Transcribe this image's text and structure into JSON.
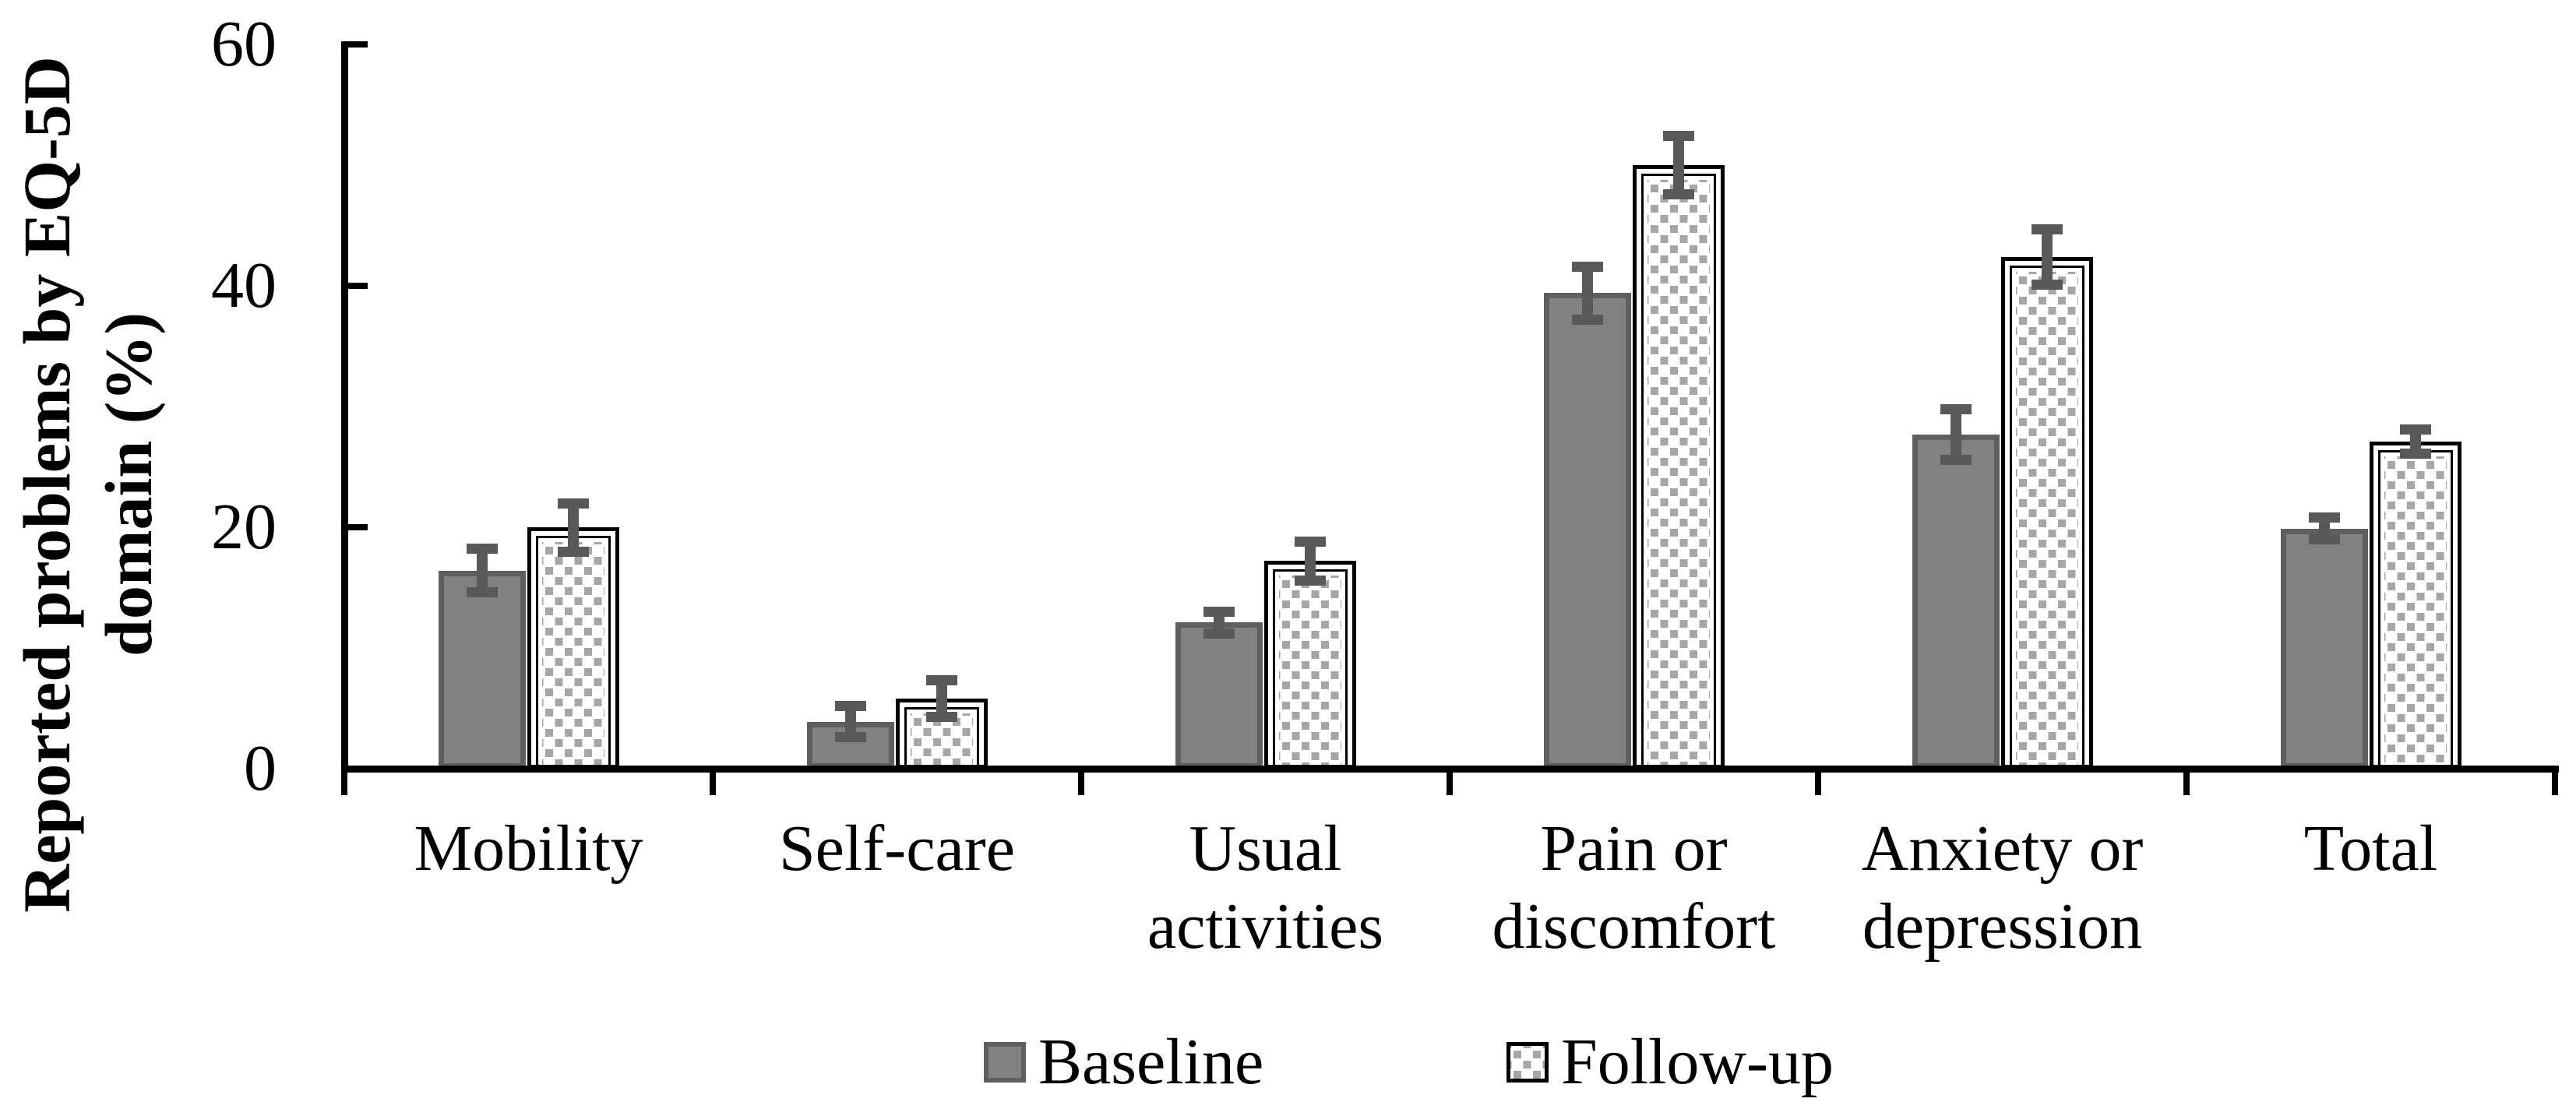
{
  "chart_data": {
    "type": "bar",
    "title": "",
    "xlabel": "",
    "ylabel": "Reported problems by EQ-5D domain (%)",
    "ylabel_lines": [
      "Reported problems by EQ-5D",
      "domain (%)"
    ],
    "categories": [
      "Mobility",
      "Self-care",
      "Usual activities",
      "Pain or discomfort",
      "Anxiety or depression",
      "Total"
    ],
    "x_tick_labels": [
      "Mobility",
      "Self-care",
      "Usual\nactivities",
      "Pain or\ndiscomfort",
      "Anxiety or\ndepression",
      "Total"
    ],
    "series": [
      {
        "name": "Baseline",
        "values": [
          16.4,
          3.9,
          12.1,
          39.4,
          27.7,
          19.9
        ],
        "errors": [
          1.8,
          1.3,
          0.9,
          2.2,
          2.1,
          0.9
        ],
        "fill_color": "#818181",
        "border_color": "#5f5f5f",
        "pattern": "solid"
      },
      {
        "name": "Follow-up",
        "values": [
          20.0,
          5.8,
          17.2,
          50.0,
          42.4,
          27.1
        ],
        "errors": [
          2.0,
          1.5,
          1.6,
          2.4,
          2.3,
          1.0
        ],
        "fill_color": "#ffffff",
        "border_color": "#000000",
        "pattern": "gray-dots",
        "dot_color": "#a6a6a6"
      }
    ],
    "yticks": [
      0,
      20,
      40,
      60
    ],
    "ylim": [
      0,
      60
    ],
    "grid": false,
    "error_bars": true,
    "error_bar_color": "#595959",
    "axis_color": "#000000",
    "legend_position": "bottom",
    "tick_style": "y-ticks-inside, x-category-boundary-ticks"
  }
}
